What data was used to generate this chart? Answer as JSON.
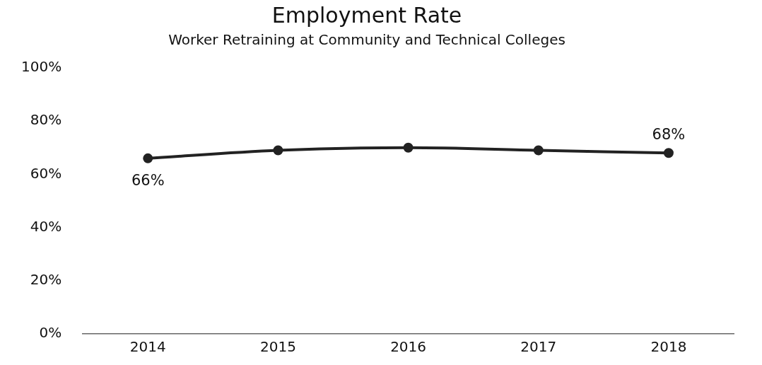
{
  "chart_data": {
    "type": "line",
    "title": "Employment Rate",
    "subtitle": "Worker Retraining at Community and Technical Colleges",
    "categories": [
      "2014",
      "2015",
      "2016",
      "2017",
      "2018"
    ],
    "series": [
      {
        "color": "#222222",
        "values": [
          66,
          69,
          70,
          69,
          68
        ],
        "value_labels": [
          "66%",
          null,
          null,
          null,
          "68%"
        ]
      }
    ],
    "ylim": [
      0,
      100
    ],
    "yticks": [
      {
        "value": 0,
        "label": "0%"
      },
      {
        "value": 20,
        "label": "20%"
      },
      {
        "value": 40,
        "label": "40%"
      },
      {
        "value": 60,
        "label": "60%"
      },
      {
        "value": 80,
        "label": "80%"
      },
      {
        "value": 100,
        "label": "100%"
      }
    ],
    "grid": false,
    "legend": false,
    "marker": "circle",
    "line_style": "solid"
  }
}
